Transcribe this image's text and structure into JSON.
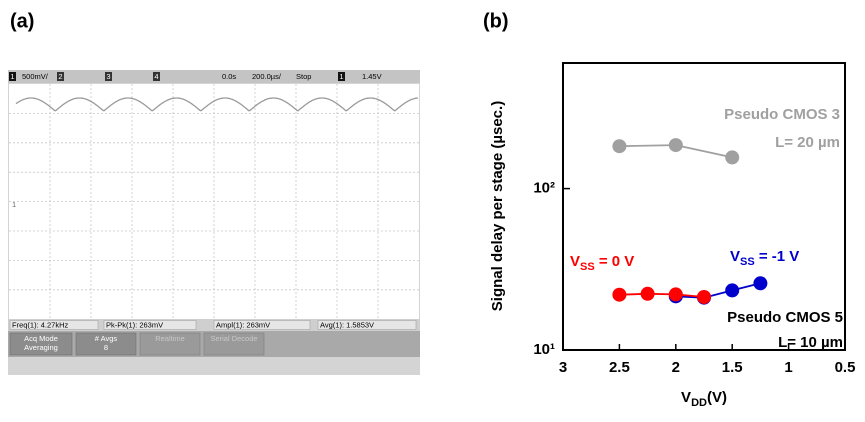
{
  "panels": [
    "(a)",
    "(b)"
  ],
  "scope": {
    "header": [
      "1",
      "500mV/",
      "2",
      "3",
      "4",
      "0.0s",
      "200.0µs/",
      "Stop",
      "1",
      "1.45V"
    ],
    "markers": [
      "1"
    ],
    "measurements": [
      "Freq(1): 4.27kHz",
      "Pk-Pk(1): 263mV",
      "Ampl(1): 263mV",
      "Avg(1): 1.5853V"
    ],
    "softkeys": [
      [
        "Acq Mode",
        "Averaging"
      ],
      [
        "# Avgs",
        "8"
      ],
      [
        "Realtime"
      ],
      [
        "Serial Decode"
      ]
    ]
  },
  "chart_data": {
    "type": "line",
    "x_label": "VDD(V)",
    "y_label": "Signal delay per stage (µsec.)",
    "xlim": [
      3,
      0.5
    ],
    "xticks": [
      3,
      2.5,
      2,
      1.5,
      1,
      0.5
    ],
    "ylim": [
      10,
      600
    ],
    "yticks": [
      {
        "value": 10,
        "label": "10¹"
      },
      {
        "value": 100,
        "label": "10²"
      }
    ],
    "log_y": true,
    "series": [
      {
        "name": "Pseudo CMOS 3",
        "color": "#a0a0a0",
        "x": [
          2.5,
          2,
          1.5
        ],
        "values": [
          183,
          186,
          156
        ]
      },
      {
        "name": "VSS = -1 V",
        "color": "#0000cc",
        "x": [
          2,
          1.75,
          1.5,
          1.25
        ],
        "values": [
          21.5,
          21.1,
          23.4,
          25.9
        ]
      },
      {
        "name": "VSS = 0 V",
        "color": "#ff0000",
        "x": [
          2.5,
          2.25,
          2,
          1.75
        ],
        "values": [
          22,
          22.3,
          22.1,
          21.3
        ]
      }
    ],
    "annotations": [
      "L= 20 µm",
      "Pseudo CMOS 5",
      "L= 10 µm"
    ]
  }
}
